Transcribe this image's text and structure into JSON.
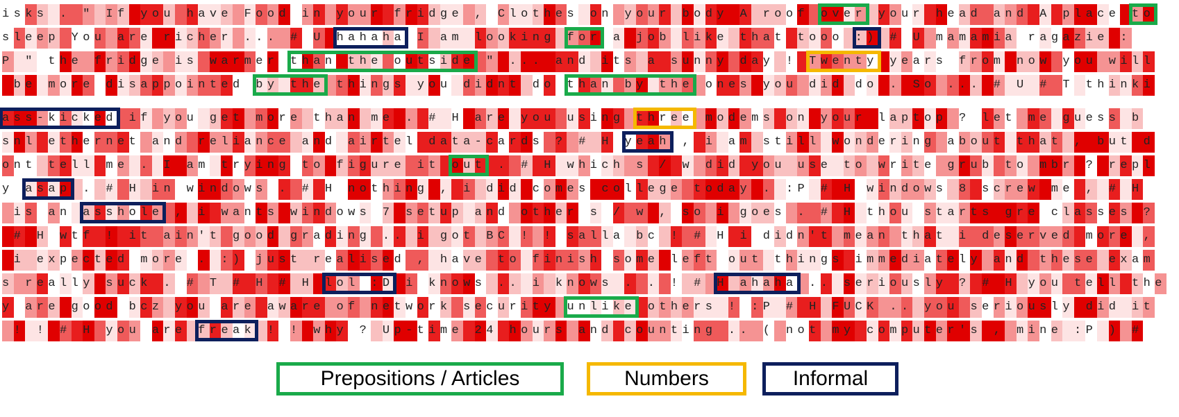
{
  "legend": [
    {
      "label": "Prepositions / Articles",
      "color": "#1aaa4a"
    },
    {
      "label": "Numbers",
      "color": "#f5b800"
    },
    {
      "label": "Informal",
      "color": "#0d1f5c"
    }
  ],
  "blocks": [
    {
      "lines": [
        [
          "isks . \" If you have Food in your fridge , Clothes on your body A roof ",
          {
            "text": "over",
            "box": "Prepositions / Articles"
          },
          " your head and A place ",
          {
            "text": "to",
            "box": "Prepositions / Articles"
          }
        ],
        [
          "sleep You are richer ... # U ",
          {
            "text": "hahaha",
            "box": "Informal"
          },
          " I am looking ",
          {
            "text": "for",
            "box": "Prepositions / Articles"
          },
          " a job like that tooo ",
          {
            "text": ":)",
            "box": "Informal"
          },
          " # U mamamia ragazie :"
        ],
        [
          "P \" the fridge is warmer ",
          {
            "text": "than the outside",
            "box": "Prepositions / Articles"
          },
          " \" ... and its a sunny day ! ",
          {
            "text": "Twenty",
            "box": "Numbers"
          },
          " years from now you will"
        ],
        [
          " be more disappointed ",
          {
            "text": "by the",
            "box": "Prepositions / Articles"
          },
          " things you didnt do ",
          {
            "text": "than by the",
            "box": "Prepositions / Articles"
          },
          " ones you did do . So ... # U # T thinki"
        ]
      ]
    },
    {
      "lines": [
        [
          {
            "text": "ass-kicked",
            "box": "Informal"
          },
          " if you get more than me . # H are you using ",
          {
            "text": "three",
            "box": "Numbers"
          },
          " modems on your laptop ? let me guess b"
        ],
        [
          "snl ethernet and reliance and airtel data-cards ? # H ",
          {
            "text": "yeah",
            "box": "Informal"
          },
          " , i am still wondering about that , but d"
        ],
        [
          "ont tell me . I am trying to figure it ",
          {
            "text": "out",
            "box": "Prepositions / Articles"
          },
          " . # H which s / w did you use to write grub to mbr ? repl"
        ],
        [
          "y ",
          {
            "text": "asap",
            "box": "Informal"
          },
          " . # H in windows . # H nothing , i did comes college today . :P # H windows 8 screw me , # H"
        ],
        [
          " is an ",
          {
            "text": "asshole",
            "box": "Informal"
          },
          " , i wants windows 7 setup and other s / w , so i goes . # H thou starts gre classes ?"
        ],
        [
          " # H wtf ! it ain't good grading .. i got BC ! ! salla bc ! # H i didn't mean that i deserved more ,"
        ],
        [
          " i expected more . :) just realised , have to finish some left out things immediately and these exam"
        ],
        [
          "s really suck . # T # H # H ",
          {
            "text": "lol :D",
            "box": "Informal"
          },
          " i knows .. i knows . . ! # ",
          {
            "text": "H ahaha",
            "box": "Informal"
          },
          " .. seriously ? # H you tell the"
        ],
        [
          "y are good bcz you are aware of network security ",
          {
            "text": "unlike",
            "box": "Prepositions / Articles"
          },
          " others ! :P # H FUCK .. you seriously did it"
        ],
        [
          " ! ! # H you are ",
          {
            "text": "freak",
            "box": "Informal"
          },
          " ! ! why ? Up-time 24 hours and counting .. ( not my computer's , mine :P ) #"
        ]
      ]
    }
  ]
}
